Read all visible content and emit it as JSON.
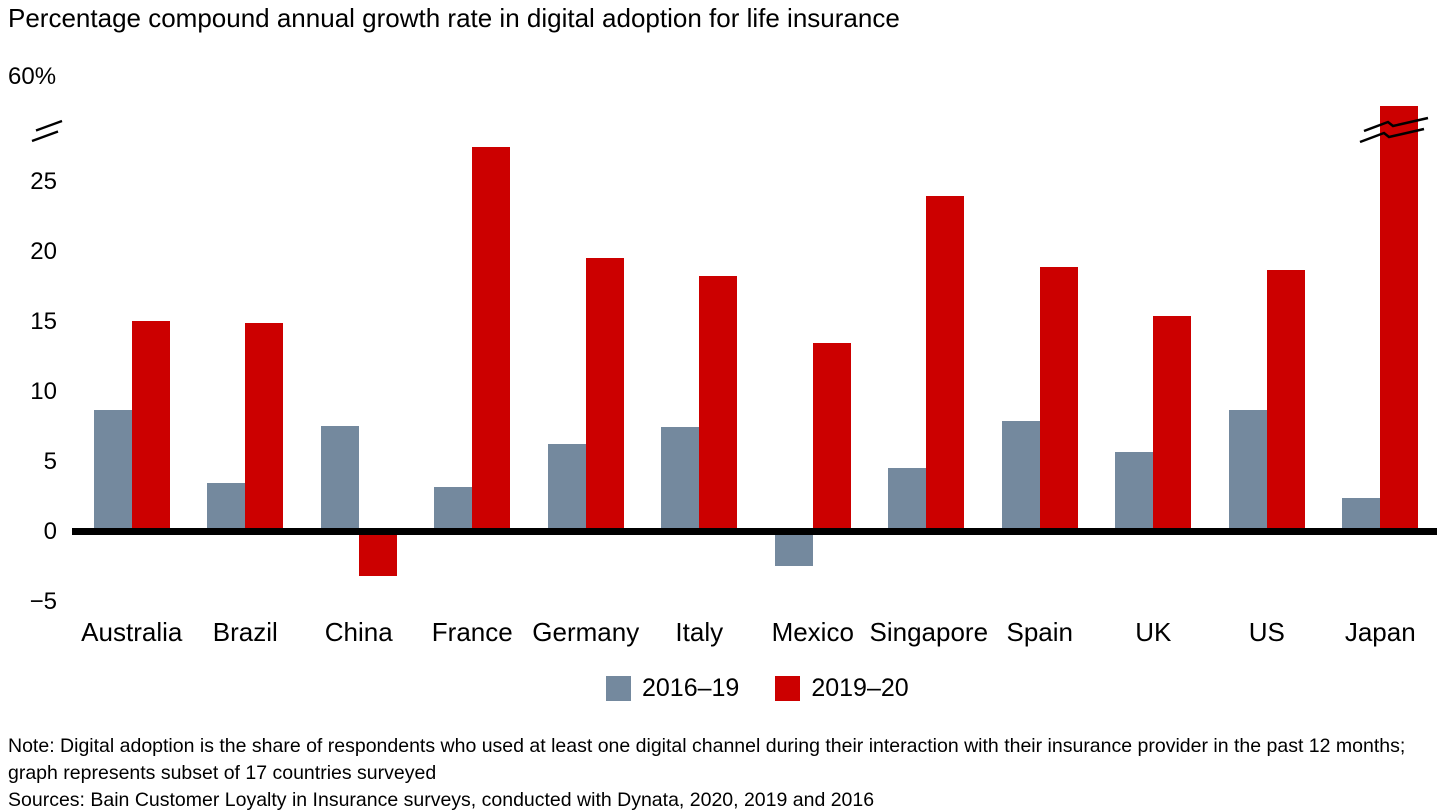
{
  "chart": {
    "title": "Percentage compound annual growth rate in digital adoption for life insurance",
    "y_axis_top_label": "60%"
  },
  "chart_data": {
    "type": "bar",
    "title": "Percentage compound annual growth rate in digital adoption for life insurance",
    "xlabel": "",
    "ylabel": "Percentage compound annual growth rate",
    "grid": false,
    "legend_position": "bottom",
    "categories": [
      "Australia",
      "Brazil",
      "China",
      "France",
      "Germany",
      "Italy",
      "Mexico",
      "Singapore",
      "Spain",
      "UK",
      "US",
      "Japan"
    ],
    "series": [
      {
        "name": "2016–19",
        "color": "#74899E",
        "values": [
          8.7,
          3.5,
          7.6,
          3.2,
          6.3,
          7.5,
          -2.3,
          4.6,
          7.9,
          5.7,
          8.7,
          2.4
        ]
      },
      {
        "name": "2019–20",
        "color": "#CC0000",
        "values": [
          15.1,
          14.9,
          -3.0,
          27.5,
          19.6,
          18.3,
          13.5,
          24.0,
          18.9,
          15.4,
          18.7,
          60
        ]
      }
    ],
    "y_ticks": [
      {
        "label": "25",
        "value": 25
      },
      {
        "label": "20",
        "value": 20
      },
      {
        "label": "15",
        "value": 15
      },
      {
        "label": "10",
        "value": 10
      },
      {
        "label": "5",
        "value": 5
      },
      {
        "label": "0",
        "value": 0
      },
      {
        "label": "−5",
        "value": -5
      }
    ],
    "y_axis_top_label": "60%",
    "axis_break": true,
    "ylim_displayed": [
      -5,
      29
    ],
    "broken_bar": {
      "category": "Japan",
      "series": "2019–20",
      "value": 60
    }
  },
  "notes": {
    "line1": "Note: Digital adoption is the share of respondents who used at least one digital channel during their interaction with their insurance provider in the past 12 months;",
    "line2": "graph represents subset of 17 countries surveyed",
    "line3": "Sources: Bain Customer Loyalty in Insurance surveys, conducted with Dynata, 2020, 2019 and 2016"
  }
}
